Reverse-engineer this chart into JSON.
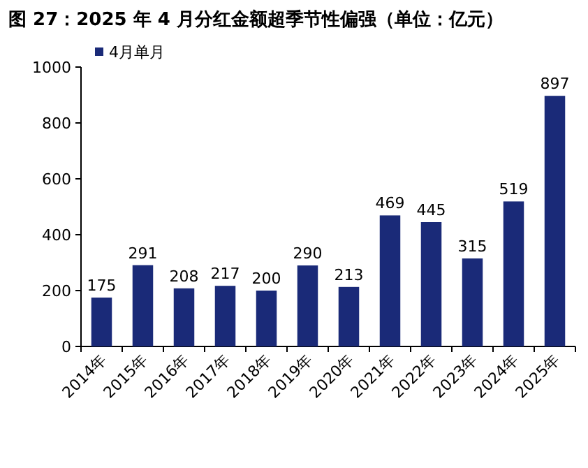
{
  "chart_data": {
    "type": "bar",
    "title": "图 27：2025 年 4 月分红金额超季节性偏强（单位：亿元）",
    "categories": [
      "2014年",
      "2015年",
      "2016年",
      "2017年",
      "2018年",
      "2019年",
      "2020年",
      "2021年",
      "2022年",
      "2023年",
      "2024年",
      "2025年"
    ],
    "series": [
      {
        "name": "4月单月",
        "color": "#1a2a78",
        "values": [
          175,
          291,
          208,
          217,
          200,
          290,
          213,
          469,
          445,
          315,
          519,
          897
        ]
      }
    ],
    "ylim": [
      0,
      1000
    ],
    "yticks": [
      0,
      200,
      400,
      600,
      800,
      1000
    ],
    "data_labels": true,
    "legend": "top left",
    "grid": false
  }
}
